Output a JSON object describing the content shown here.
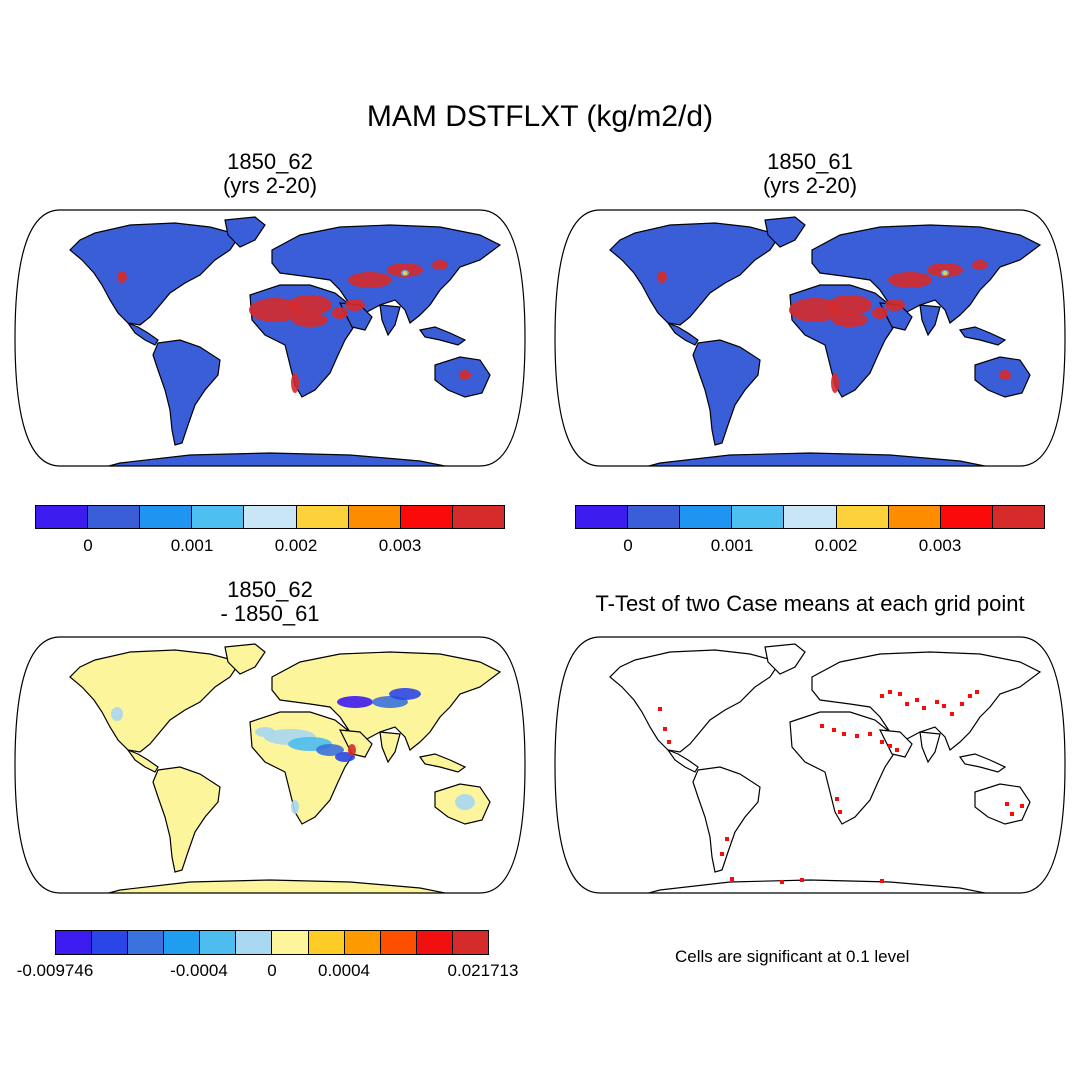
{
  "title": "MAM DSTFLXT (kg/m2/d)",
  "panels": [
    {
      "title_line1": "1850_62",
      "title_line2": "(yrs 2-20)"
    },
    {
      "title_line1": "1850_61",
      "title_line2": "(yrs 2-20)"
    },
    {
      "title_line1": "1850_62",
      "title_line2": "- 1850_61"
    },
    {
      "title_line1": "T-Test of two Case means at each grid point",
      "title_line2": ""
    }
  ],
  "colorbar_abs": {
    "colors": [
      "#3d1cf0",
      "#3a5ed8",
      "#1f94f0",
      "#4dbff0",
      "#c8e6f5",
      "#fdd13a",
      "#fd8c00",
      "#fb0a0a",
      "#d62b2b"
    ],
    "labels": [
      "0",
      "0.001",
      "0.002",
      "0.003"
    ]
  },
  "colorbar_diff": {
    "colors": [
      "#3d1cf0",
      "#2b46e8",
      "#3a72de",
      "#1f9ef0",
      "#4dbdf0",
      "#a8d7f2",
      "#fdf59b",
      "#fdcc26",
      "#fd9a00",
      "#fd4f00",
      "#f01010",
      "#d62b2b"
    ],
    "labels": [
      "-0.009746",
      "-0.0004",
      "0",
      "0.0004",
      "0.021713"
    ]
  },
  "ttest_note": "Cells are significant at 0.1 level",
  "map_colors": {
    "ocean": "#ffffff",
    "land_abs": "#3a5ed8",
    "land_diff": "#fdf59b",
    "desert_hot": "#d62b2b",
    "sig_cell": "#fb0a0a"
  }
}
